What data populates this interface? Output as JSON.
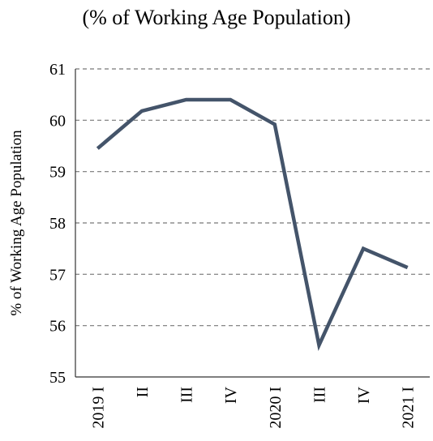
{
  "chart_data": {
    "type": "line",
    "title": "(% of Working Age Population)",
    "y_label": "% of Working Age Population",
    "categories": [
      "2019 I",
      "II",
      "III",
      "IV",
      "2020 I",
      "III",
      "IV",
      "2021 I"
    ],
    "series": [
      {
        "color": "#44546a",
        "values": [
          59.45,
          60.18,
          60.4,
          60.4,
          59.92,
          55.62,
          57.5,
          57.13
        ]
      }
    ],
    "ylim": [
      55,
      61
    ],
    "yticks": [
      55,
      56,
      57,
      58,
      59,
      60,
      61
    ],
    "grid": true
  }
}
